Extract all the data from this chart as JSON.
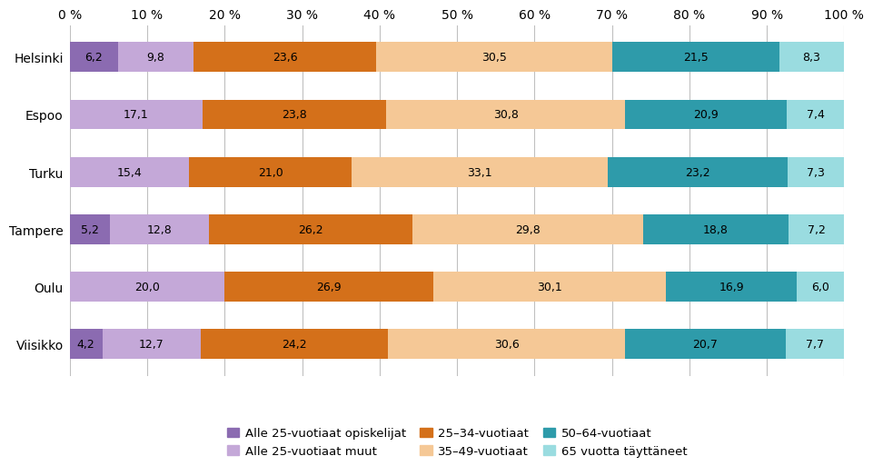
{
  "cities": [
    "Helsinki",
    "Espoo",
    "Turku",
    "Tampere",
    "Oulu",
    "Viisikko"
  ],
  "series": [
    {
      "label": "Alle 25-vuotiaat opiskelijat",
      "color": "#8B6BB1",
      "values": [
        6.2,
        0.0,
        0.0,
        5.2,
        0.0,
        4.2
      ]
    },
    {
      "label": "Alle 25-vuotiaat muut",
      "color": "#C4A8D8",
      "values": [
        9.8,
        17.1,
        15.4,
        12.8,
        20.0,
        12.7
      ]
    },
    {
      "label": "25–34-vuotiaat",
      "color": "#D4701A",
      "values": [
        23.6,
        23.8,
        21.0,
        26.2,
        26.9,
        24.2
      ]
    },
    {
      "label": "35–49-vuotiaat",
      "color": "#F5C896",
      "values": [
        30.5,
        30.8,
        33.1,
        29.8,
        30.1,
        30.6
      ]
    },
    {
      "label": "50–64-vuotiaat",
      "color": "#2E9BAA",
      "values": [
        21.5,
        20.9,
        23.2,
        18.8,
        16.9,
        20.7
      ]
    },
    {
      "label": "65 vuotta täyttäneet",
      "color": "#9ADCE0",
      "values": [
        8.3,
        7.4,
        7.3,
        7.2,
        6.0,
        7.7
      ]
    }
  ],
  "xlim": [
    0,
    100
  ],
  "xticks": [
    0,
    10,
    20,
    30,
    40,
    50,
    60,
    70,
    80,
    90,
    100
  ],
  "xtick_labels": [
    "0 %",
    "10 %",
    "20 %",
    "30 %",
    "40 %",
    "50 %",
    "60 %",
    "70 %",
    "80 %",
    "90 %",
    "100 %"
  ],
  "bar_height": 0.52,
  "background_color": "#ffffff",
  "text_color": "#000000",
  "fontsize_labels": 10,
  "fontsize_bar_text": 9.0,
  "legend_fontsize": 9.5,
  "grid_color": "#c0c0c0",
  "grid_linewidth": 0.8
}
